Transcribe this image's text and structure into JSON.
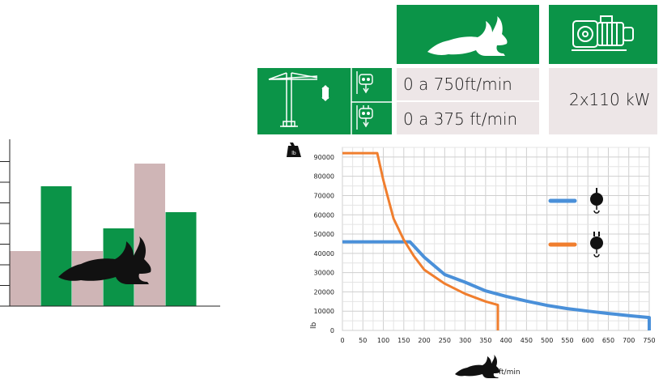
{
  "specs": {
    "speed_high": "0 a 750ft/min",
    "speed_low": "0 a 375 ft/min",
    "power": "2x110 kW",
    "icons": [
      "rabbit-icon",
      "motor-icon",
      "tower-crane-icon",
      "hook-single-icon",
      "hook-double-icon"
    ]
  },
  "mini_chart": {
    "bar_colors": [
      "#cfb5b6",
      "#0b9448",
      "#cfb5b6",
      "#0b9448",
      "#cfb5b6",
      "#0b9448"
    ],
    "bar_levels": [
      0.34,
      0.74,
      0.34,
      0.48,
      0.88,
      0.58
    ]
  },
  "chart_data": {
    "type": "line",
    "x_unit": "ft/min",
    "y_unit": "lb",
    "xlim": [
      0,
      750
    ],
    "ylim": [
      0,
      90000
    ],
    "x_ticks": [
      "0",
      "50",
      "100",
      "150",
      "200",
      "250",
      "300",
      "350",
      "400",
      "450",
      "500",
      "550",
      "600",
      "650",
      "700",
      "750"
    ],
    "y_ticks": [
      "0",
      "10000",
      "20000",
      "30000",
      "40000",
      "50000",
      "60000",
      "70000",
      "80000",
      "90000"
    ],
    "grid": true,
    "series": [
      {
        "color": "#4a90d9",
        "icon": "hook-single-icon",
        "points": [
          [
            0,
            46000
          ],
          [
            100,
            46000
          ],
          [
            165,
            46000
          ],
          [
            200,
            38000
          ],
          [
            250,
            29000
          ],
          [
            300,
            25000
          ],
          [
            350,
            20500
          ],
          [
            400,
            17700
          ],
          [
            450,
            15200
          ],
          [
            500,
            13000
          ],
          [
            550,
            11300
          ],
          [
            600,
            10000
          ],
          [
            650,
            8800
          ],
          [
            700,
            7700
          ],
          [
            750,
            6700
          ],
          [
            750,
            0
          ]
        ]
      },
      {
        "color": "#f07e2e",
        "icon": "hook-double-icon",
        "points": [
          [
            0,
            92000
          ],
          [
            85,
            92000
          ],
          [
            100,
            78000
          ],
          [
            125,
            58000
          ],
          [
            150,
            47000
          ],
          [
            175,
            38500
          ],
          [
            200,
            31500
          ],
          [
            250,
            24300
          ],
          [
            300,
            19000
          ],
          [
            350,
            15000
          ],
          [
            380,
            13200
          ],
          [
            380,
            0
          ]
        ]
      }
    ]
  }
}
